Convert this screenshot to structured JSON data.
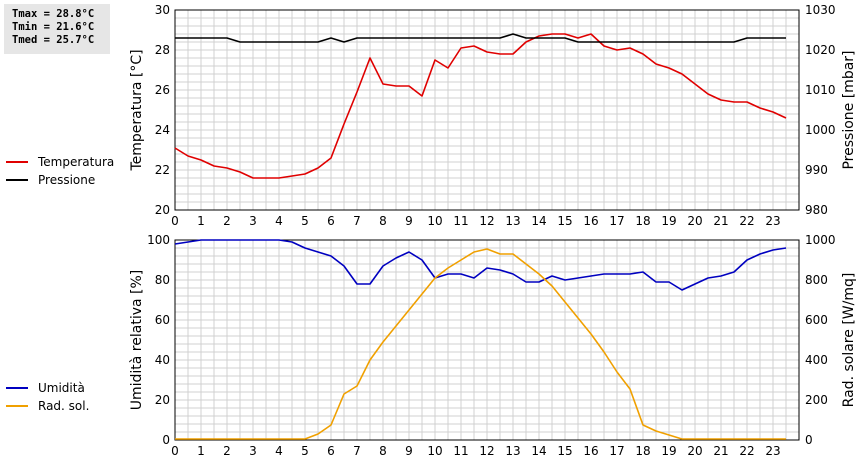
{
  "stats": {
    "tmax": "Tmax = 28.8°C",
    "tmin": "Tmin = 21.6°C",
    "tmed": "Tmed = 25.7°C"
  },
  "chart_data": [
    {
      "type": "line",
      "x_ticks": [
        "0",
        "1",
        "2",
        "3",
        "4",
        "5",
        "6",
        "7",
        "8",
        "9",
        "10",
        "11",
        "12",
        "13",
        "14",
        "15",
        "16",
        "17",
        "18",
        "19",
        "20",
        "21",
        "22",
        "23"
      ],
      "ylabel": "Temperatura [°C]",
      "ylim": [
        20,
        30
      ],
      "y_ticks": [
        20,
        22,
        24,
        26,
        28,
        30
      ],
      "y2label": "Pressione [mbar]",
      "y2lim": [
        980,
        1030
      ],
      "y2_ticks": [
        980,
        990,
        1000,
        1010,
        1020,
        1030
      ],
      "grid": true,
      "legend_position": "left",
      "series": [
        {
          "name": "Temperatura",
          "axis": "left",
          "color": "#e00000",
          "x": [
            0,
            0.5,
            1,
            1.5,
            2,
            2.5,
            3,
            3.5,
            4,
            4.5,
            5,
            5.5,
            6,
            6.5,
            7,
            7.5,
            8,
            8.5,
            9,
            9.5,
            10,
            10.5,
            11,
            11.5,
            12,
            12.5,
            13,
            13.5,
            14,
            14.5,
            15,
            15.5,
            16,
            16.5,
            17,
            17.5,
            18,
            18.5,
            19,
            19.5,
            20,
            20.5,
            21,
            21.5,
            22,
            22.5,
            23,
            23.5
          ],
          "y": [
            23.1,
            22.7,
            22.5,
            22.2,
            22.1,
            21.9,
            21.6,
            21.6,
            21.6,
            21.7,
            21.8,
            22.1,
            22.6,
            24.3,
            25.9,
            27.6,
            26.3,
            26.2,
            26.2,
            25.7,
            27.5,
            27.1,
            28.1,
            28.2,
            27.9,
            27.8,
            27.8,
            28.4,
            28.7,
            28.8,
            28.8,
            28.6,
            28.8,
            28.2,
            28.0,
            28.1,
            27.8,
            27.3,
            27.1,
            26.8,
            26.3,
            25.8,
            25.5,
            25.4,
            25.4,
            25.1,
            24.9,
            24.6
          ]
        },
        {
          "name": "Pressione",
          "axis": "right",
          "color": "#000000",
          "x": [
            0,
            0.5,
            1,
            1.5,
            2,
            2.5,
            3,
            3.5,
            4,
            4.5,
            5,
            5.5,
            6,
            6.5,
            7,
            7.5,
            8,
            8.5,
            9,
            9.5,
            10,
            10.5,
            11,
            11.5,
            12,
            12.5,
            13,
            13.5,
            14,
            14.5,
            15,
            15.5,
            16,
            16.5,
            17,
            17.5,
            18,
            18.5,
            19,
            19.5,
            20,
            20.5,
            21,
            21.5,
            22,
            22.5,
            23,
            23.5
          ],
          "y": [
            1023,
            1023,
            1023,
            1023,
            1023,
            1022,
            1022,
            1022,
            1022,
            1022,
            1022,
            1022,
            1023,
            1022,
            1023,
            1023,
            1023,
            1023,
            1023,
            1023,
            1023,
            1023,
            1023,
            1023,
            1023,
            1023,
            1024,
            1023,
            1023,
            1023,
            1023,
            1022,
            1022,
            1022,
            1022,
            1022,
            1022,
            1022,
            1022,
            1022,
            1022,
            1022,
            1022,
            1022,
            1023,
            1023,
            1023,
            1023
          ]
        }
      ]
    },
    {
      "type": "line",
      "x_ticks": [
        "0",
        "1",
        "2",
        "3",
        "4",
        "5",
        "6",
        "7",
        "8",
        "9",
        "10",
        "11",
        "12",
        "13",
        "14",
        "15",
        "16",
        "17",
        "18",
        "19",
        "20",
        "21",
        "22",
        "23"
      ],
      "ylabel": "Umidità relativa [%]",
      "ylim": [
        0,
        100
      ],
      "y_ticks": [
        0,
        20,
        40,
        60,
        80,
        100
      ],
      "y2label": "Rad. solare [W/mq]",
      "y2lim": [
        0,
        1000
      ],
      "y2_ticks": [
        0,
        200,
        400,
        600,
        800,
        1000
      ],
      "grid": true,
      "legend_position": "left",
      "series": [
        {
          "name": "Umidità",
          "axis": "left",
          "color": "#0000c0",
          "x": [
            0,
            0.5,
            1,
            1.5,
            2,
            2.5,
            3,
            3.5,
            4,
            4.5,
            5,
            5.5,
            6,
            6.5,
            7,
            7.5,
            8,
            8.5,
            9,
            9.5,
            10,
            10.5,
            11,
            11.5,
            12,
            12.5,
            13,
            13.5,
            14,
            14.5,
            15,
            15.5,
            16,
            16.5,
            17,
            17.5,
            18,
            18.5,
            19,
            19.5,
            20,
            20.5,
            21,
            21.5,
            22,
            22.5,
            23,
            23.5
          ],
          "y": [
            98,
            99,
            100,
            100,
            100,
            100,
            100,
            100,
            100,
            99,
            96,
            94,
            92,
            87,
            78,
            78,
            87,
            91,
            94,
            90,
            81,
            83,
            83,
            81,
            86,
            85,
            83,
            79,
            79,
            82,
            80,
            81,
            82,
            83,
            83,
            83,
            84,
            79,
            79,
            75,
            78,
            81,
            82,
            84,
            90,
            93,
            95,
            96
          ]
        },
        {
          "name": "Rad. sol.",
          "axis": "right",
          "color": "#f0a000",
          "x": [
            0,
            0.5,
            1,
            1.5,
            2,
            2.5,
            3,
            3.5,
            4,
            4.5,
            5,
            5.5,
            6,
            6.5,
            7,
            7.5,
            8,
            8.5,
            9,
            9.5,
            10,
            10.5,
            11,
            11.5,
            12,
            12.5,
            13,
            13.5,
            14,
            14.5,
            15,
            15.5,
            16,
            16.5,
            17,
            17.5,
            18,
            18.5,
            19,
            19.5,
            20,
            20.5,
            21,
            21.5,
            22,
            22.5,
            23,
            23.5
          ],
          "y": [
            5,
            5,
            5,
            5,
            5,
            5,
            5,
            5,
            5,
            5,
            5,
            30,
            75,
            230,
            270,
            400,
            490,
            570,
            650,
            730,
            810,
            860,
            900,
            940,
            955,
            930,
            930,
            880,
            830,
            770,
            690,
            610,
            530,
            440,
            340,
            255,
            75,
            45,
            25,
            5,
            5,
            5,
            5,
            5,
            5,
            5,
            5,
            5
          ]
        }
      ]
    }
  ]
}
